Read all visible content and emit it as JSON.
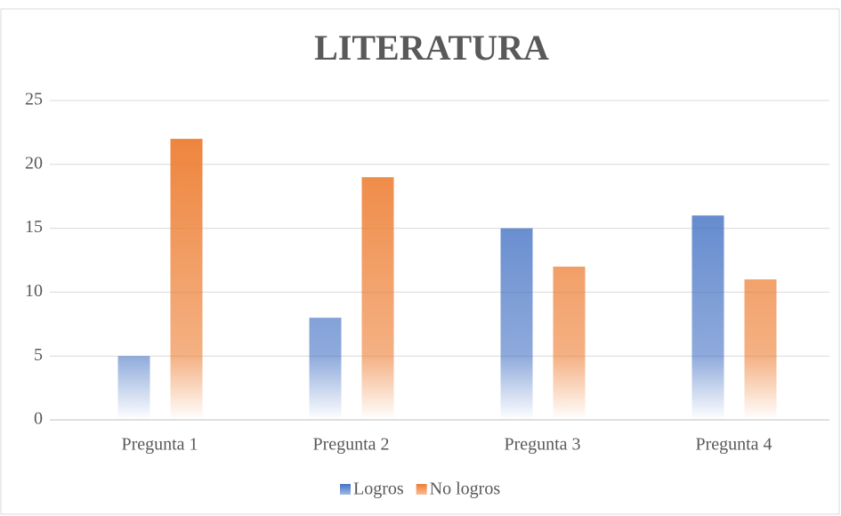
{
  "chart_data": {
    "type": "bar",
    "title": "LITERATURA",
    "categories": [
      "Pregunta 1",
      "Pregunta 2",
      "Pregunta 3",
      "Pregunta 4"
    ],
    "series": [
      {
        "name": "Logros",
        "color": "#4472c4",
        "values": [
          5,
          8,
          15,
          16
        ]
      },
      {
        "name": "No logros",
        "color": "#ed7d31",
        "values": [
          22,
          19,
          12,
          11
        ]
      }
    ],
    "ylim": [
      0,
      25
    ],
    "yticks": [
      0,
      5,
      10,
      15,
      20,
      25
    ],
    "grid": true,
    "legend": "bottom"
  }
}
